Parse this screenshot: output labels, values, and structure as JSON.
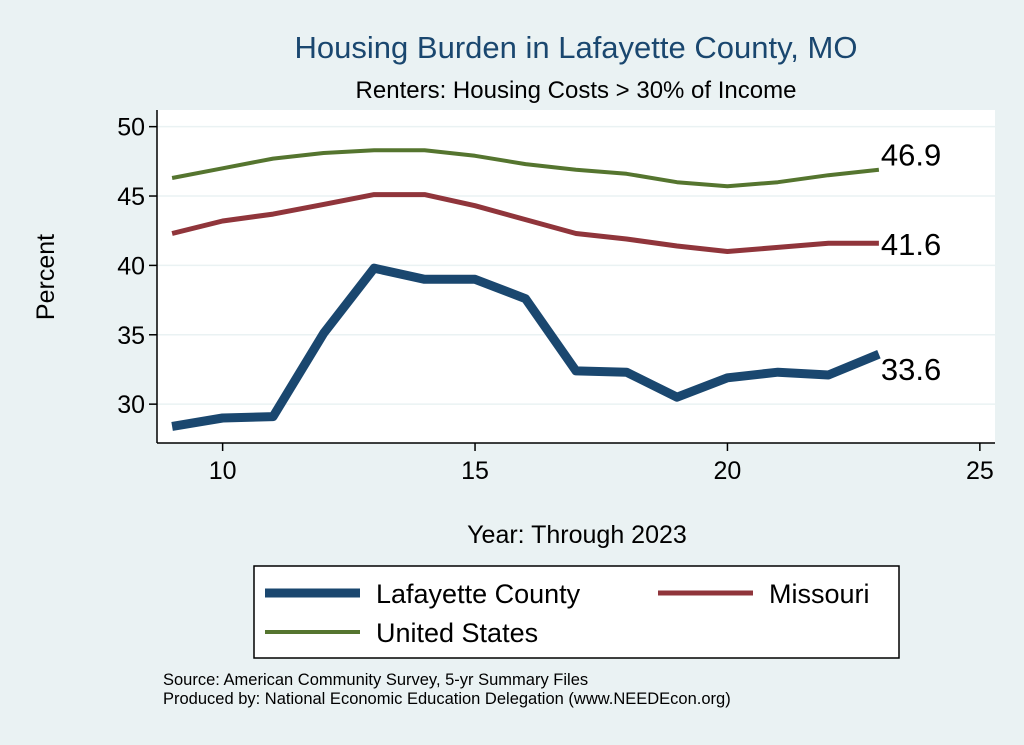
{
  "chart_data": {
    "type": "line",
    "title": "Housing Burden in Lafayette County, MO",
    "subtitle": "Renters: Housing Costs > 30% of Income",
    "xlabel": "Year: Through 2023",
    "ylabel": "Percent",
    "xlim": [
      8.7,
      25.3
    ],
    "ylim": [
      27.2,
      51.2
    ],
    "x_ticks": [
      10,
      15,
      20,
      25
    ],
    "y_ticks": [
      30,
      35,
      40,
      45,
      50
    ],
    "grid": "horizontal",
    "x": [
      9,
      10,
      11,
      12,
      13,
      14,
      15,
      16,
      17,
      18,
      19,
      20,
      21,
      22,
      23
    ],
    "series": [
      {
        "name": "Lafayette County",
        "color": "#1a476f",
        "values": [
          28.4,
          29.0,
          29.1,
          35.1,
          39.8,
          39.0,
          39.0,
          37.6,
          32.4,
          32.3,
          30.5,
          31.9,
          32.3,
          32.1,
          33.6
        ],
        "end_label": "33.6"
      },
      {
        "name": "Missouri",
        "color": "#90353b",
        "values": [
          42.3,
          43.2,
          43.7,
          44.4,
          45.1,
          45.1,
          44.3,
          43.3,
          42.3,
          41.9,
          41.4,
          41.0,
          41.3,
          41.6,
          41.6
        ],
        "end_label": "41.6"
      },
      {
        "name": "United States",
        "color": "#55752f",
        "values": [
          46.3,
          47.0,
          47.7,
          48.1,
          48.3,
          48.3,
          47.9,
          47.3,
          46.9,
          46.6,
          46.0,
          45.7,
          46.0,
          46.5,
          46.9
        ],
        "end_label": "46.9"
      }
    ],
    "legend": {
      "position": "bottom",
      "entries": [
        "Lafayette County",
        "Missouri",
        "United States"
      ]
    }
  },
  "source": "Source: American Community Survey, 5-yr Summary Files",
  "produced_by": "Produced by: National Economic Education Delegation (www.NEEDEcon.org)"
}
